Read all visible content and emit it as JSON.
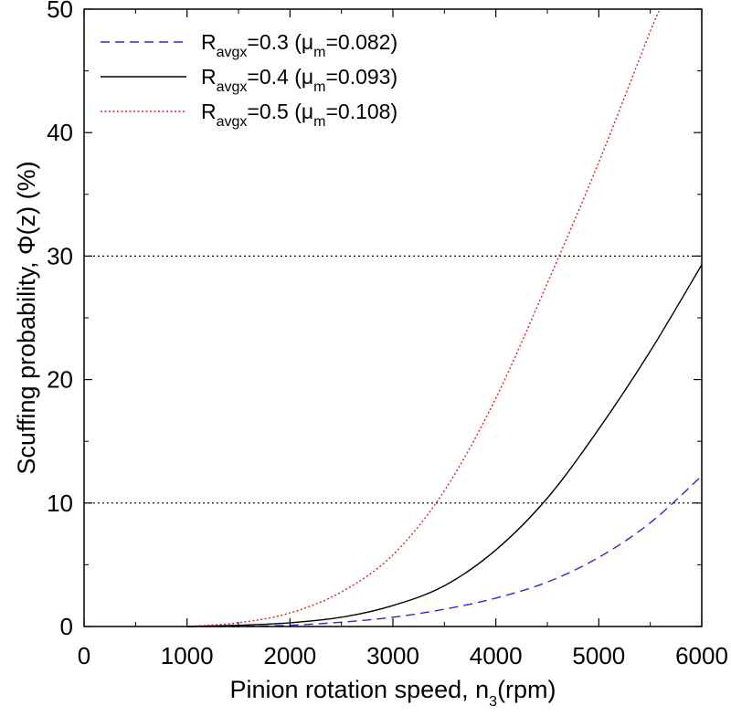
{
  "chart_data": {
    "type": "line",
    "xlabel": "Pinion rotation speed, n",
    "xlabel_sub": "3",
    "xlabel_unit": "(rpm)",
    "ylabel": "Scuffing probability, Φ(z) (%)",
    "xlim": [
      0,
      6000
    ],
    "ylim": [
      0,
      50
    ],
    "x_ticks": [
      0,
      1000,
      2000,
      3000,
      4000,
      5000,
      6000
    ],
    "y_ticks": [
      0,
      10,
      20,
      30,
      40,
      50
    ],
    "reference_lines": [
      10,
      30
    ],
    "legend_position": "top-left",
    "series": [
      {
        "legend_main": "R",
        "legend_sub": "avgx",
        "legend_rest1": "=0.3 (μ",
        "legend_sub2": "m",
        "legend_rest2": "=0.082)",
        "color": "#2a2ad6",
        "style": "dashed",
        "x": [
          1000,
          1500,
          2000,
          2500,
          3000,
          3500,
          4000,
          4500,
          5000,
          5500,
          6000
        ],
        "y": [
          0.0,
          0.0,
          0.1,
          0.35,
          0.75,
          1.4,
          2.3,
          3.6,
          5.6,
          8.4,
          12.2
        ]
      },
      {
        "legend_main": "R",
        "legend_sub": "avgx",
        "legend_rest1": "=0.4 (μ",
        "legend_sub2": "m",
        "legend_rest2": "=0.093)",
        "color": "#000000",
        "style": "solid",
        "x": [
          1000,
          1500,
          2000,
          2500,
          3000,
          3500,
          4000,
          4500,
          5000,
          5500,
          6000
        ],
        "y": [
          0.0,
          0.1,
          0.3,
          0.75,
          1.7,
          3.3,
          6.2,
          10.4,
          16.0,
          22.3,
          29.3
        ]
      },
      {
        "legend_main": "R",
        "legend_sub": "avgx",
        "legend_rest1": "=0.5 (μ",
        "legend_sub2": "m",
        "legend_rest2": "=0.108)",
        "color": "#e02020",
        "style": "dotted",
        "x": [
          1000,
          1500,
          2000,
          2500,
          3000,
          3500,
          4000,
          4500,
          5000,
          5500,
          5600
        ],
        "y": [
          0.0,
          0.3,
          1.1,
          2.8,
          5.8,
          11.0,
          18.5,
          27.8,
          37.6,
          48.2,
          50.0
        ]
      }
    ]
  }
}
